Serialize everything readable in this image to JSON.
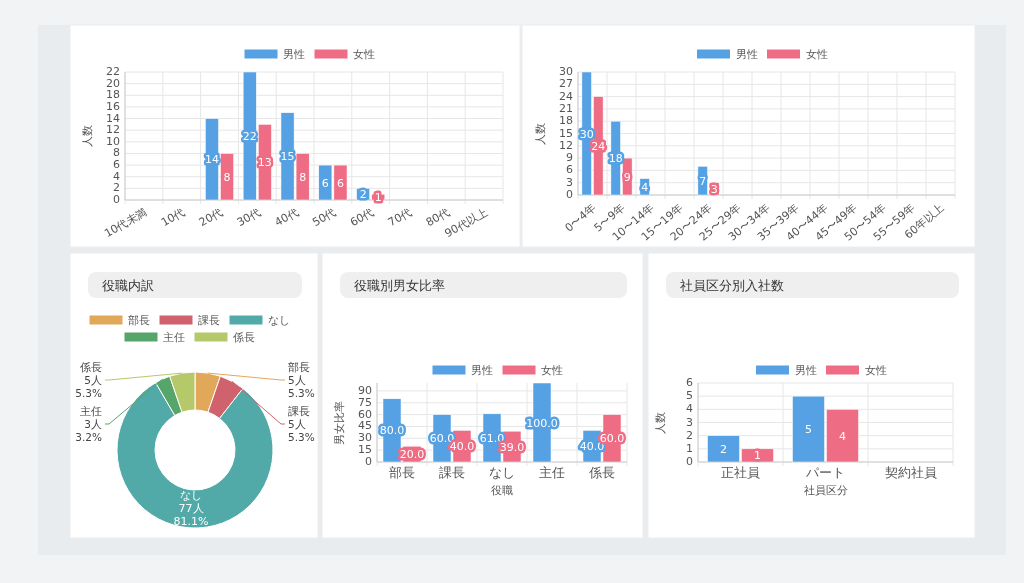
{
  "chart_data": [
    {
      "type": "bar",
      "categories": [
        "10代未満",
        "10代",
        "20代",
        "30代",
        "40代",
        "50代",
        "60代",
        "70代",
        "80代",
        "90代以上"
      ],
      "ylabel": "人数",
      "ylim": [
        0,
        22
      ],
      "yticks": [
        0,
        2,
        4,
        6,
        8,
        10,
        12,
        14,
        16,
        18,
        20,
        22
      ],
      "grid": true,
      "legend": "top",
      "series": [
        {
          "name": "男性",
          "color": "#55a1e3",
          "values": [
            0,
            0,
            14,
            22,
            15,
            6,
            2,
            0,
            0,
            0
          ],
          "value_labels": [
            null,
            null,
            "14",
            "22",
            "15",
            "6",
            "2",
            null,
            null,
            null
          ]
        },
        {
          "name": "女性",
          "color": "#ef6d84",
          "values": [
            0,
            0,
            8,
            13,
            8,
            6,
            1,
            0,
            0,
            0
          ],
          "value_labels": [
            null,
            null,
            "8",
            "13",
            "8",
            "6",
            "1",
            null,
            null,
            null
          ]
        }
      ]
    },
    {
      "type": "bar",
      "categories": [
        "0〜4年",
        "5〜9年",
        "10〜14年",
        "15〜19年",
        "20〜24年",
        "25〜29年",
        "30〜34年",
        "35〜39年",
        "40〜44年",
        "45〜49年",
        "50〜54年",
        "55〜59年",
        "60年以上"
      ],
      "ylabel": "人数",
      "ylim": [
        0,
        30
      ],
      "yticks": [
        0,
        3,
        6,
        9,
        12,
        15,
        18,
        21,
        24,
        27,
        30
      ],
      "grid": true,
      "legend": "top",
      "series": [
        {
          "name": "男性",
          "color": "#55a1e3",
          "values": [
            30,
            18,
            4,
            0,
            7,
            0,
            0,
            0,
            0,
            0,
            0,
            0,
            0
          ],
          "value_labels": [
            "30",
            "18",
            "4",
            null,
            "7",
            null,
            null,
            null,
            null,
            null,
            null,
            null,
            null
          ]
        },
        {
          "name": "女性",
          "color": "#ef6d84",
          "values": [
            24,
            9,
            0,
            0,
            3,
            0,
            0,
            0,
            0,
            0,
            0,
            0,
            0
          ],
          "value_labels": [
            "24",
            "9",
            null,
            null,
            "3",
            null,
            null,
            null,
            null,
            null,
            null,
            null,
            null
          ]
        }
      ]
    },
    {
      "type": "donut",
      "title": "役職内訳",
      "legend": "top",
      "categories": [
        "部長",
        "課長",
        "なし",
        "主任",
        "係長"
      ],
      "values": [
        5,
        5,
        77,
        3,
        5
      ],
      "colors": [
        "#e2a85a",
        "#d0626e",
        "#52aaa8",
        "#56a56a",
        "#b5c96a"
      ],
      "value_labels": [
        "部長\n5人\n5.3%",
        "課長\n5人\n5.3%",
        "なし\n77人\n81.1%",
        "主任\n3人\n3.2%",
        "係長\n5人\n5.3%"
      ]
    },
    {
      "type": "bar",
      "title": "役職別男女比率",
      "categories": [
        "部長",
        "課長",
        "なし",
        "主任",
        "係長"
      ],
      "xlabel": "役職",
      "ylabel": "男女比率",
      "ylim": [
        0,
        100
      ],
      "yticks": [
        0,
        15,
        30,
        45,
        60,
        75,
        90
      ],
      "grid": true,
      "legend": "top",
      "series": [
        {
          "name": "男性",
          "color": "#55a1e3",
          "values": [
            80,
            60,
            61,
            100,
            40
          ],
          "value_labels": [
            "80.0",
            "60.0",
            "61.0",
            "100.0",
            "40.0"
          ]
        },
        {
          "name": "女性",
          "color": "#ef6d84",
          "values": [
            20,
            40,
            39,
            0,
            60
          ],
          "value_labels": [
            "20.0",
            "40.0",
            "39.0",
            null,
            "60.0"
          ]
        }
      ]
    },
    {
      "type": "bar",
      "title": "社員区分別入社数",
      "categories": [
        "正社員",
        "パート",
        "契約社員"
      ],
      "xlabel": "社員区分",
      "ylabel": "人数",
      "ylim": [
        0,
        6
      ],
      "yticks": [
        0,
        1,
        2,
        3,
        4,
        5,
        6
      ],
      "grid": true,
      "legend": "top",
      "series": [
        {
          "name": "男性",
          "color": "#55a1e3",
          "values": [
            2,
            5,
            0
          ],
          "value_labels": [
            "2",
            "5",
            null
          ]
        },
        {
          "name": "女性",
          "color": "#ef6d84",
          "values": [
            1,
            4,
            0
          ],
          "value_labels": [
            "1",
            "4",
            null
          ]
        }
      ]
    }
  ]
}
